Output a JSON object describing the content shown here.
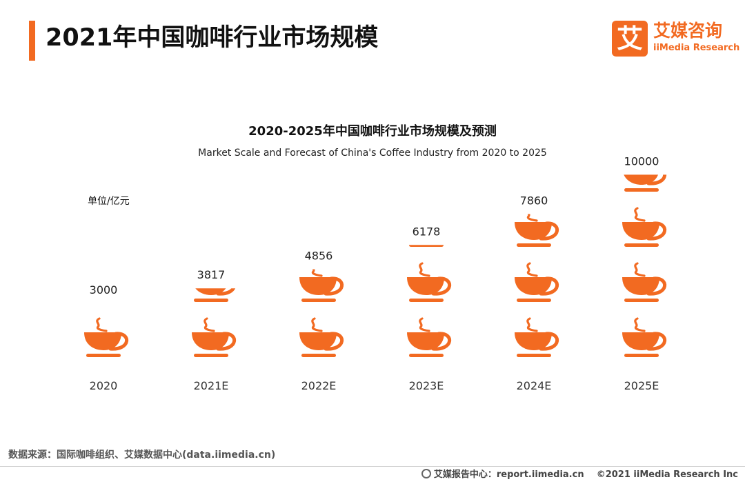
{
  "header": {
    "title": "2021年中国咖啡行业市场规模",
    "logo_mark": "艾",
    "logo_cn": "艾媒咨询",
    "logo_en": "iiMedia Research"
  },
  "chart_data": {
    "type": "bar",
    "title": "2020-2025年中国咖啡行业市场规模及预测",
    "subtitle": "Market Scale and Forecast of China's Coffee Industry from 2020 to 2025",
    "unit": "单位/亿元",
    "categories": [
      "2020",
      "2021E",
      "2022E",
      "2023E",
      "2024E",
      "2025E"
    ],
    "values": [
      3000,
      3817,
      4856,
      6178,
      7860,
      10000
    ],
    "value_labels": [
      "3000",
      "3817",
      "4856",
      "6178",
      "7860",
      "10000"
    ],
    "cup_value": 3000,
    "ylim": [
      0,
      10000
    ],
    "grid": false,
    "legend": "none",
    "bar_color": "#f26a21",
    "icon": "coffee-cup-icon"
  },
  "footer": {
    "source": "数据来源：国际咖啡组织、艾媒数据中心(data.iimedia.cn)",
    "report": "艾媒报告中心：report.iimedia.cn",
    "copyright": "©2021  iiMedia Research  Inc"
  }
}
